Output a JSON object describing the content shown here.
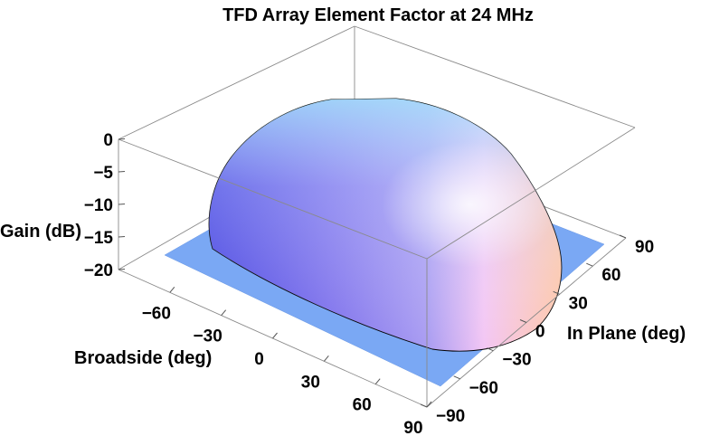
{
  "chart_data": {
    "type": "surface3d",
    "title": "TFD Array Element Factor at 24 MHz",
    "xlabel": "Broadside (deg)",
    "ylabel": "In Plane (deg)",
    "zlabel": "Gain (dB)",
    "xticks": [
      "−60",
      "−30",
      "0",
      "30",
      "60",
      "90"
    ],
    "xtick_values": [
      -60,
      -30,
      0,
      30,
      60,
      90
    ],
    "yticks": [
      "−90",
      "−60",
      "−30",
      "0",
      "30",
      "60",
      "90"
    ],
    "ytick_values": [
      -90,
      -60,
      -30,
      0,
      30,
      60,
      90
    ],
    "zticks": [
      "0",
      "−5",
      "−10",
      "−15",
      "−20"
    ],
    "ztick_values": [
      0,
      -5,
      -10,
      -15,
      -20
    ],
    "xlim": [
      -90,
      90
    ],
    "ylim": [
      -90,
      90
    ],
    "zlim": [
      -20,
      0
    ],
    "grid": false,
    "floor_value_db": -20,
    "surface_peak_db": 0,
    "colors": {
      "floor": "#7aa8f4",
      "surface_left": "#4a45e6",
      "surface_mid": "#8f86f0",
      "surface_top": "#9fd8fa",
      "surface_right": "#ffc9b0",
      "box": "#8a8a8a"
    }
  }
}
